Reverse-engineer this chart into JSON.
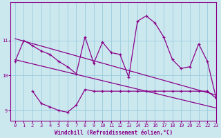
{
  "x": [
    0,
    1,
    2,
    3,
    4,
    5,
    6,
    7,
    8,
    9,
    10,
    11,
    12,
    13,
    14,
    15,
    16,
    17,
    18,
    19,
    20,
    21,
    22,
    23
  ],
  "reg_upper": [
    11.05,
    10.98,
    10.91,
    10.84,
    10.77,
    10.7,
    10.63,
    10.56,
    10.49,
    10.42,
    10.35,
    10.28,
    10.21,
    10.14,
    10.07,
    10.0,
    9.93,
    9.86,
    9.79,
    9.72,
    9.65,
    9.58,
    9.51,
    9.44
  ],
  "reg_lower": [
    10.45,
    10.39,
    10.33,
    10.27,
    10.21,
    10.15,
    10.09,
    10.03,
    9.97,
    9.91,
    9.85,
    9.79,
    9.73,
    9.67,
    9.61,
    9.55,
    9.49,
    9.43,
    9.37,
    9.31,
    9.25,
    9.19,
    9.13,
    9.07
  ],
  "jagged_x": [
    0,
    1,
    2,
    3,
    4,
    5,
    6,
    7,
    8,
    9,
    10,
    11,
    12,
    13,
    14,
    15,
    16,
    17,
    18,
    19,
    20,
    21,
    22,
    23
  ],
  "jagged_y": [
    10.4,
    11.0,
    10.85,
    10.7,
    10.6,
    10.4,
    10.25,
    10.05,
    11.1,
    10.35,
    10.95,
    10.65,
    10.6,
    9.95,
    11.55,
    11.7,
    11.5,
    11.1,
    10.45,
    10.2,
    10.25,
    10.9,
    10.4,
    9.35
  ],
  "flat_x": [
    2,
    3,
    4,
    5,
    6,
    7,
    8,
    9,
    10,
    11,
    12,
    13,
    14,
    15,
    16,
    17,
    18,
    19,
    20,
    21,
    22,
    23
  ],
  "flat_y": [
    9.55,
    9.2,
    9.1,
    9.0,
    8.95,
    9.15,
    9.6,
    9.55,
    9.55,
    9.55,
    9.55,
    9.55,
    9.55,
    9.55,
    9.55,
    9.55,
    9.55,
    9.55,
    9.55,
    9.55,
    9.55,
    9.35
  ],
  "bg_color": "#cce8ef",
  "line_color": "#880088",
  "grid_color": "#99ccdd",
  "xlabel": "Windchill (Refroidissement éolien,°C)",
  "xlabel_color": "#880088",
  "tick_color": "#880088",
  "ylim": [
    8.7,
    12.1
  ],
  "xlim": [
    -0.5,
    23
  ],
  "yticks": [
    9,
    10,
    11
  ],
  "xticks": [
    0,
    1,
    2,
    3,
    4,
    5,
    6,
    7,
    8,
    9,
    10,
    11,
    12,
    13,
    14,
    15,
    16,
    17,
    18,
    19,
    20,
    21,
    22,
    23
  ]
}
